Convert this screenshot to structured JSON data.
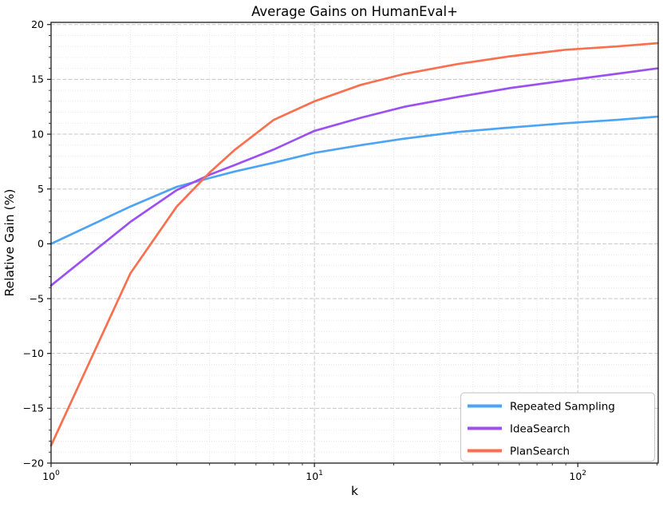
{
  "figure": {
    "title": "Average Gains on HumanEval+",
    "xlabel": "k",
    "ylabel": "Relative Gain (%)"
  },
  "chart_data": {
    "type": "line",
    "title": "Average Gains on HumanEval+",
    "xlabel": "k",
    "ylabel": "Relative Gain (%)",
    "x_scale": "log",
    "xlim": [
      1,
      202
    ],
    "ylim": [
      -20,
      20.2
    ],
    "grid": {
      "major": true,
      "minor": true
    },
    "legend_position": "lower right",
    "x": [
      1,
      2,
      3,
      4,
      5,
      7,
      10,
      15,
      22,
      35,
      55,
      90,
      140,
      200
    ],
    "series": [
      {
        "name": "Repeated Sampling",
        "color": "#4DA4F4",
        "values": [
          0.0,
          3.4,
          5.2,
          6.0,
          6.6,
          7.4,
          8.3,
          9.0,
          9.6,
          10.2,
          10.6,
          11.0,
          11.3,
          11.6
        ]
      },
      {
        "name": "IdeaSearch",
        "color": "#9C50F0",
        "values": [
          -3.8,
          2.0,
          4.9,
          6.3,
          7.2,
          8.6,
          10.3,
          11.5,
          12.5,
          13.4,
          14.2,
          14.9,
          15.5,
          16.0
        ]
      },
      {
        "name": "PlanSearch",
        "color": "#F8704F",
        "values": [
          -18.4,
          -2.7,
          3.4,
          6.5,
          8.6,
          11.3,
          13.0,
          14.5,
          15.5,
          16.4,
          17.1,
          17.7,
          18.0,
          18.3
        ]
      }
    ],
    "x_major_ticks": [
      {
        "value": 1,
        "base": "10",
        "exponent": "0"
      },
      {
        "value": 10,
        "base": "10",
        "exponent": "1"
      },
      {
        "value": 100,
        "base": "10",
        "exponent": "2"
      }
    ],
    "y_major_ticks": [
      -20,
      -15,
      -10,
      -5,
      0,
      5,
      10,
      15,
      20
    ],
    "colors": {
      "spine": "#1a1a1a",
      "grid_major": "#c6c6c6",
      "grid_minor": "#e2e2e2",
      "tick": "#1a1a1a",
      "legend_border": "#cccccc",
      "legend_fill": "#ffffff"
    }
  }
}
